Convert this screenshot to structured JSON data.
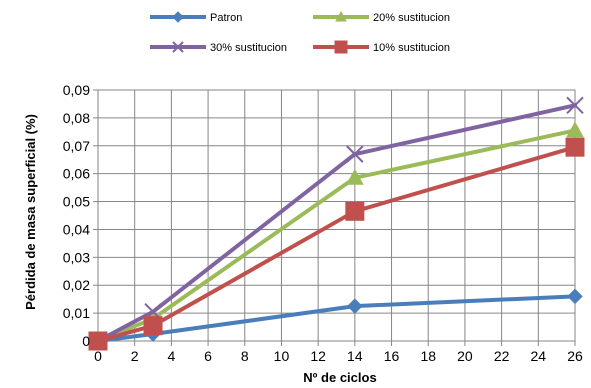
{
  "chart_data": {
    "type": "line",
    "xlabel": "Nº de ciclos",
    "ylabel": "Pérdida de masa superficial (%)",
    "xlim": [
      0,
      26
    ],
    "ylim": [
      0,
      0.09
    ],
    "x_ticks": [
      "0",
      "2",
      "4",
      "6",
      "8",
      "10",
      "12",
      "14",
      "16",
      "18",
      "20",
      "22",
      "24",
      "26"
    ],
    "y_ticks": [
      "0",
      "0,01",
      "0,02",
      "0,03",
      "0,04",
      "0,05",
      "0,06",
      "0,07",
      "0,08",
      "0,09"
    ],
    "x_tick_values": [
      0,
      2,
      4,
      6,
      8,
      10,
      12,
      14,
      16,
      18,
      20,
      22,
      24,
      26
    ],
    "y_tick_values": [
      0,
      0.01,
      0.02,
      0.03,
      0.04,
      0.05,
      0.06,
      0.07,
      0.08,
      0.09
    ],
    "grid": true,
    "legend_position": "top",
    "series": [
      {
        "name": "Patron",
        "color": "#4a7ebb",
        "marker": "diamond",
        "x": [
          0,
          3,
          14,
          26
        ],
        "y": [
          0,
          0.0025,
          0.0125,
          0.016
        ]
      },
      {
        "name": "20% sustitucion",
        "color": "#9bbb59",
        "marker": "triangle",
        "x": [
          0,
          3,
          14,
          26
        ],
        "y": [
          0,
          0.008,
          0.0585,
          0.0755
        ]
      },
      {
        "name": "30% sustitucion",
        "color": "#8064a2",
        "marker": "x",
        "x": [
          0,
          3,
          14,
          26
        ],
        "y": [
          0,
          0.0105,
          0.067,
          0.0845
        ]
      },
      {
        "name": "10% sustitucion",
        "color": "#c0504d",
        "marker": "square",
        "x": [
          0,
          3,
          14,
          26
        ],
        "y": [
          0,
          0.0055,
          0.0465,
          0.0695
        ]
      }
    ]
  }
}
